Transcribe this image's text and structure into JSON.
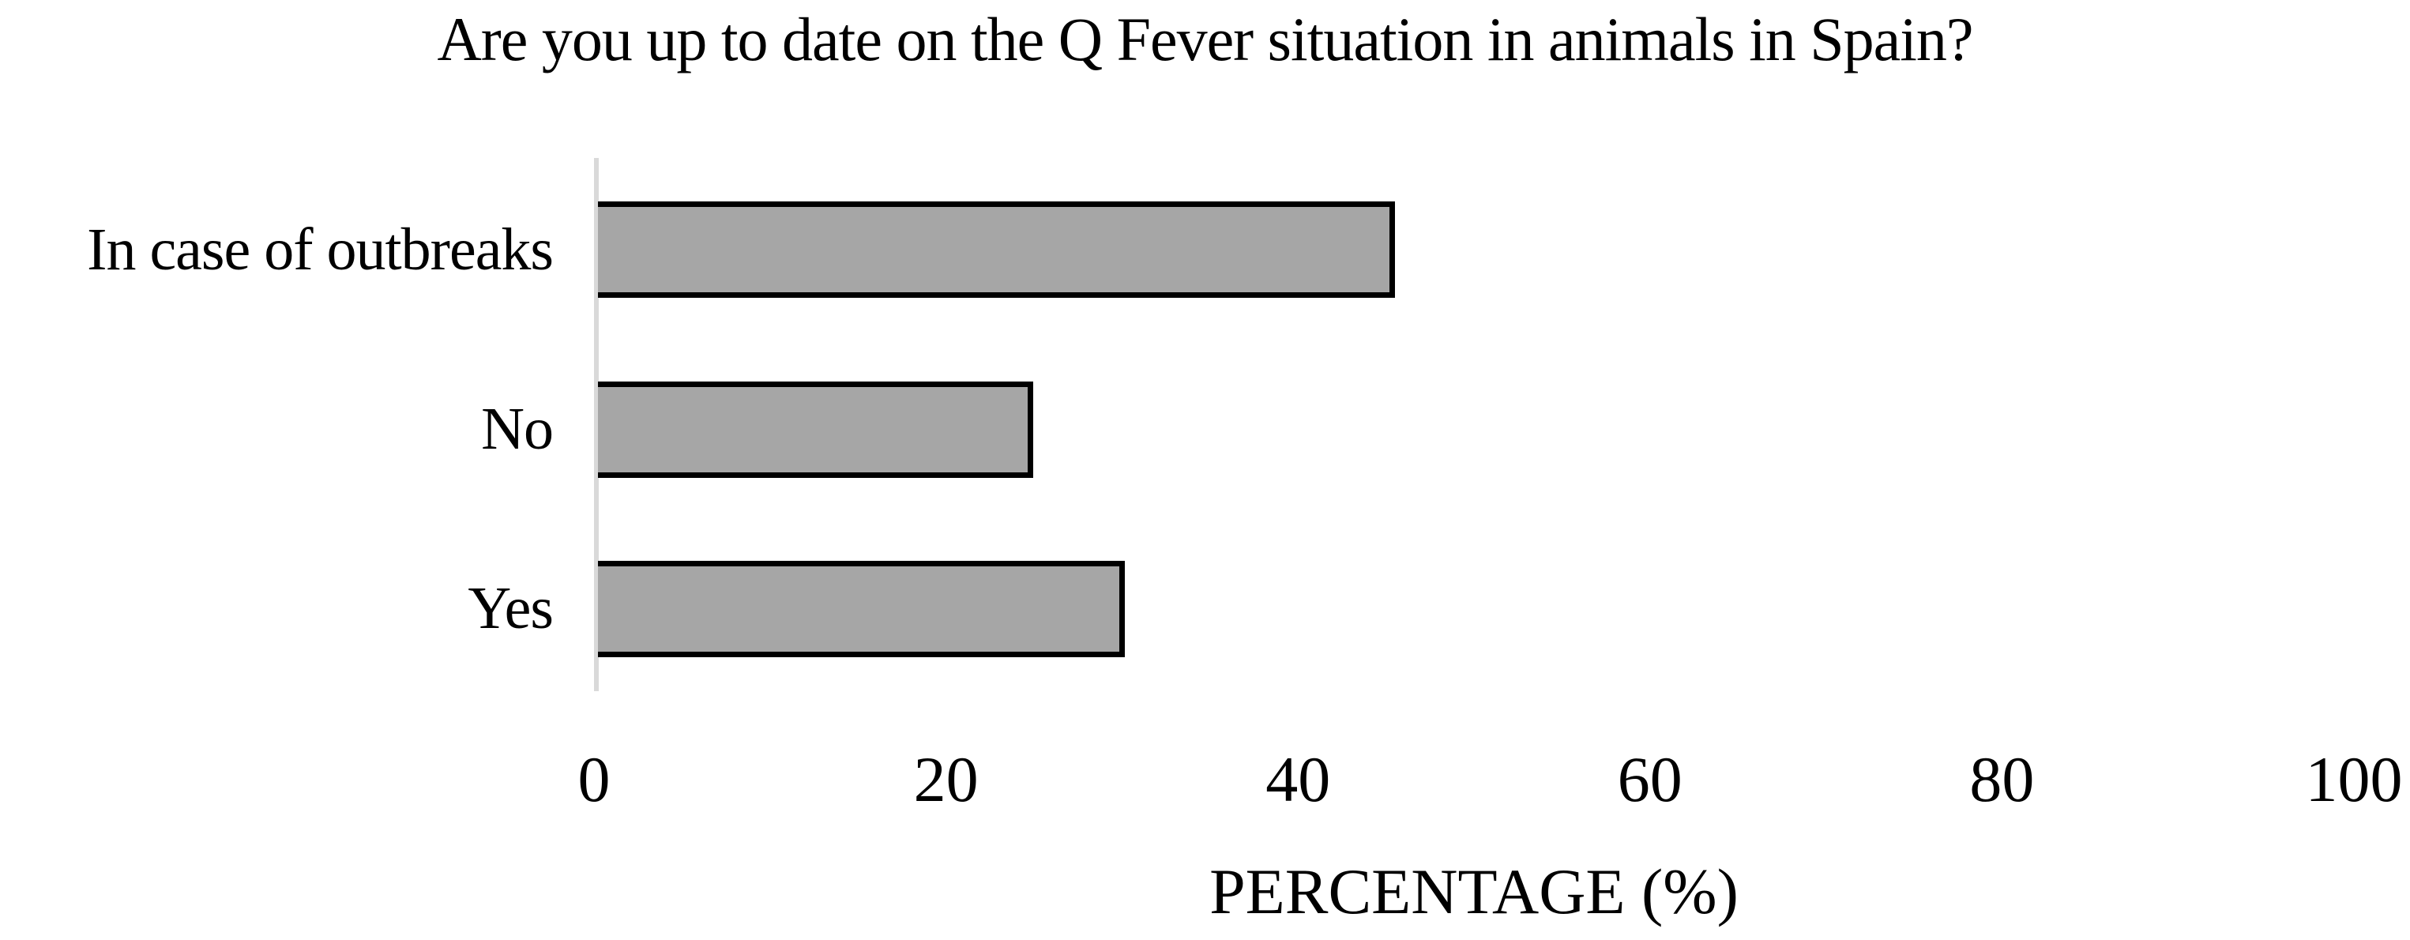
{
  "chart_data": {
    "type": "bar",
    "orientation": "horizontal",
    "title": "Are you up to date on the Q Fever situation in animals in Spain?",
    "categories": [
      "In case of outbreaks",
      "No",
      "Yes"
    ],
    "values": [
      45.4,
      24.8,
      30.0
    ],
    "xlabel": "PERCENTAGE (%)",
    "ylabel": "",
    "xlim": [
      0,
      100
    ],
    "x_ticks": [
      "0",
      "20",
      "40",
      "60",
      "80",
      "100"
    ],
    "grid": false,
    "legend": false,
    "bar_fill_color": "#a6a6a6",
    "bar_border_color": "#000000",
    "axis_line_color": "#d9d9d9",
    "background_color": "#ffffff"
  }
}
